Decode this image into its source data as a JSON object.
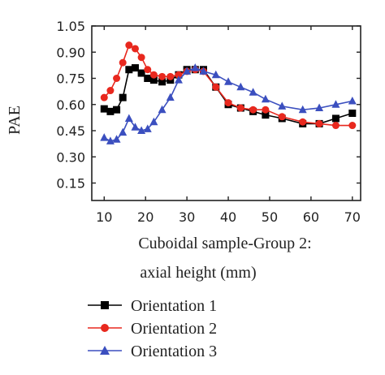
{
  "chart_data": {
    "type": "line",
    "xlabel_line1": "Cuboidal sample-Group 2:",
    "xlabel_line2": "axial height (mm)",
    "ylabel": "PAE",
    "xlim": [
      7,
      72
    ],
    "ylim": [
      0.05,
      1.05
    ],
    "xticks": [
      10,
      20,
      30,
      40,
      50,
      60,
      70
    ],
    "yticks": [
      "0.15",
      "0.30",
      "0.45",
      "0.60",
      "0.75",
      "0.90",
      "1.05"
    ],
    "grid": false,
    "legend_position": "bottom",
    "series": [
      {
        "name": "Orientation 1",
        "color": "#000000",
        "marker": "square",
        "x": [
          10,
          11.5,
          13,
          14.5,
          16,
          17.5,
          19,
          20.5,
          22,
          24,
          26,
          28,
          30,
          32,
          34,
          37,
          40,
          43,
          46,
          49,
          53,
          58,
          62,
          66,
          70
        ],
        "y": [
          0.575,
          0.56,
          0.57,
          0.64,
          0.8,
          0.81,
          0.78,
          0.75,
          0.74,
          0.73,
          0.74,
          0.77,
          0.8,
          0.8,
          0.8,
          0.7,
          0.6,
          0.58,
          0.56,
          0.54,
          0.52,
          0.49,
          0.49,
          0.52,
          0.55
        ]
      },
      {
        "name": "Orientation 2",
        "color": "#e8281e",
        "marker": "circle",
        "x": [
          10,
          11.5,
          13,
          14.5,
          16,
          17.5,
          19,
          20.5,
          22,
          24,
          26,
          28,
          30,
          32,
          34,
          37,
          40,
          43,
          46,
          49,
          53,
          58,
          62,
          66,
          70
        ],
        "y": [
          0.64,
          0.68,
          0.75,
          0.84,
          0.94,
          0.92,
          0.87,
          0.8,
          0.77,
          0.76,
          0.76,
          0.77,
          0.79,
          0.8,
          0.79,
          0.7,
          0.61,
          0.58,
          0.57,
          0.57,
          0.53,
          0.5,
          0.49,
          0.48,
          0.48
        ]
      },
      {
        "name": "Orientation 3",
        "color": "#3b4fbf",
        "marker": "triangle",
        "x": [
          10,
          11.5,
          13,
          14.5,
          16,
          17.5,
          19,
          20.5,
          22,
          24,
          26,
          28,
          30,
          32,
          34,
          37,
          40,
          43,
          46,
          49,
          53,
          58,
          62,
          66,
          70
        ],
        "y": [
          0.41,
          0.39,
          0.4,
          0.44,
          0.52,
          0.47,
          0.45,
          0.46,
          0.5,
          0.57,
          0.64,
          0.74,
          0.79,
          0.81,
          0.79,
          0.77,
          0.73,
          0.7,
          0.67,
          0.63,
          0.59,
          0.57,
          0.58,
          0.6,
          0.62
        ]
      }
    ]
  }
}
